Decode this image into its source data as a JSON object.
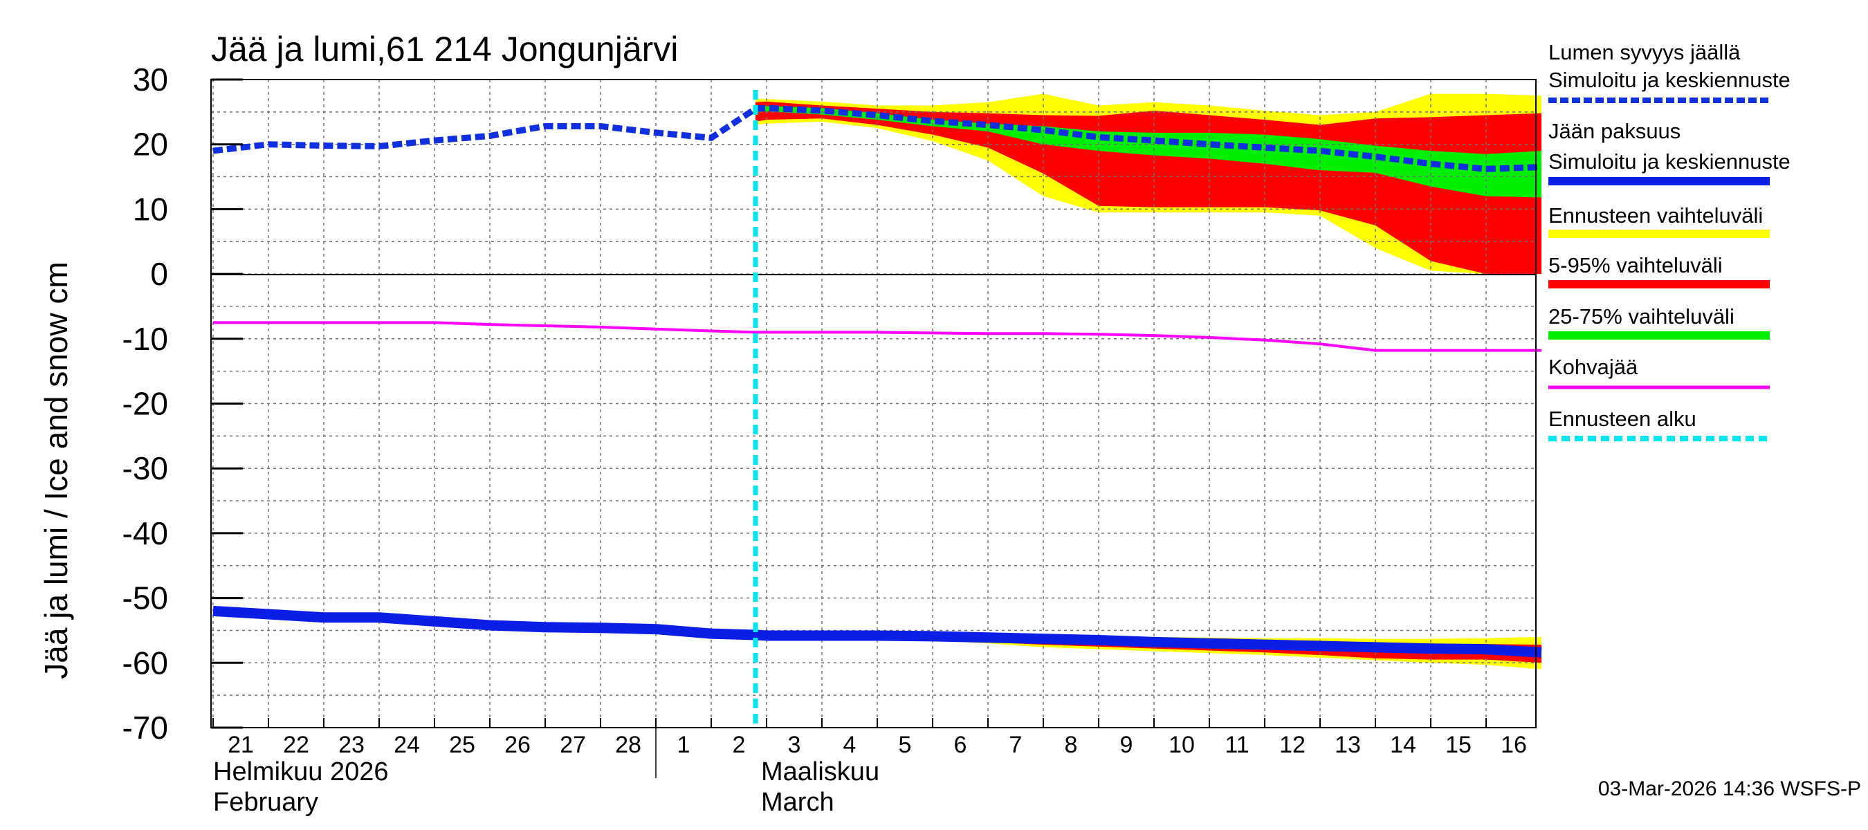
{
  "chart_data": {
    "type": "area",
    "title": "Jää ja lumi,61 214 Jongunjärvi",
    "ylabel": "Jää ja lumi / Ice and snow    cm",
    "ylim": [
      -70,
      30
    ],
    "yticks": [
      "30",
      "20",
      "10",
      "0",
      "-10",
      "-20",
      "-30",
      "-40",
      "-50",
      "-60",
      "-70"
    ],
    "x_start": "2026-02-21",
    "day_labels": [
      "21",
      "22",
      "23",
      "24",
      "25",
      "26",
      "27",
      "28",
      "1",
      "2",
      "3",
      "4",
      "5",
      "6",
      "7",
      "8",
      "9",
      "10",
      "11",
      "12",
      "13",
      "14",
      "15",
      "16"
    ],
    "month_labels": [
      {
        "fi": "Helmikuu  2026",
        "en": "February",
        "day_index": 0
      },
      {
        "fi": "Maaliskuu",
        "en": "March",
        "day_index": 9
      }
    ],
    "forecast_start_day": 9.8,
    "timestamp": "03-Mar-2026 14:36 WSFS-P",
    "colors": {
      "snow": "#1030e0",
      "ice": "#0a1ee6",
      "range_full": "#ffff00",
      "range_5_95": "#ff0000",
      "range_25_75": "#00ee00",
      "slush": "#ff00ff",
      "forecast_start": "#00e5ee",
      "grid": "#707070"
    },
    "series": [
      {
        "name": "Lumen syvyys jäällä (simuloitu ja keskiennuste)",
        "x": [
          0,
          1,
          2,
          3,
          4,
          5,
          6,
          7,
          8,
          9,
          9.8,
          10,
          11,
          12,
          13,
          14,
          15,
          16,
          17,
          18,
          19,
          20,
          21,
          22,
          23,
          24
        ],
        "values": [
          19,
          20,
          19.8,
          19.7,
          20.6,
          21.3,
          22.8,
          22.8,
          21.8,
          21.0,
          25.5,
          25.6,
          25.2,
          24.5,
          23.6,
          23.0,
          22.2,
          21.1,
          20.6,
          20.0,
          19.5,
          19.0,
          18.1,
          17.0,
          16.2,
          16.5
        ]
      },
      {
        "name": "Jään paksuus (simuloitu ja keskiennuste)",
        "x": [
          0,
          1,
          2,
          3,
          4,
          5,
          6,
          7,
          8,
          9,
          9.8,
          10,
          11,
          12,
          13,
          14,
          15,
          16,
          17,
          18,
          19,
          20,
          21,
          22,
          23,
          24
        ],
        "values": [
          -52,
          -52.5,
          -53,
          -53,
          -53.6,
          -54.2,
          -54.5,
          -54.6,
          -54.8,
          -55.5,
          -55.7,
          -55.8,
          -55.8,
          -55.8,
          -55.9,
          -56.1,
          -56.3,
          -56.5,
          -56.8,
          -57.0,
          -57.2,
          -57.4,
          -57.6,
          -57.8,
          -57.9,
          -58.4
        ]
      },
      {
        "name": "Kohvajää",
        "x": [
          0,
          1,
          2,
          3,
          4,
          5,
          6,
          7,
          8,
          9,
          9.8,
          10,
          11,
          12,
          13,
          14,
          15,
          16,
          17,
          18,
          19,
          20,
          21,
          22,
          23,
          24
        ],
        "values": [
          -7.5,
          -7.5,
          -7.5,
          -7.5,
          -7.5,
          -7.8,
          -8,
          -8.2,
          -8.5,
          -8.8,
          -9,
          -9,
          -9,
          -9,
          -9.1,
          -9.2,
          -9.2,
          -9.3,
          -9.5,
          -9.8,
          -10.2,
          -10.8,
          -11.8,
          -11.8,
          -11.8,
          -11.8
        ]
      }
    ],
    "snow_bands": {
      "x": [
        9.8,
        10,
        11,
        12,
        13,
        14,
        15,
        16,
        17,
        18,
        19,
        20,
        21,
        22,
        23,
        24
      ],
      "full_hi": [
        27,
        27,
        26.6,
        26.0,
        26.0,
        26.5,
        27.8,
        26.0,
        26.5,
        26.0,
        25.2,
        24.5,
        25.0,
        27.8,
        27.8,
        27.5
      ],
      "full_lo": [
        23,
        23.2,
        23.5,
        22.5,
        20.5,
        17.5,
        12,
        9.5,
        9.5,
        9.5,
        9.5,
        9,
        4,
        0.5,
        0,
        0
      ],
      "p95": [
        26.5,
        26.6,
        26,
        25.5,
        25,
        24.8,
        24.5,
        24.4,
        25.2,
        24.5,
        23.8,
        23.0,
        24.0,
        24.2,
        24.5,
        24.8
      ],
      "p5": [
        23.5,
        23.8,
        24,
        23,
        21.5,
        19.5,
        15.5,
        10.5,
        10.3,
        10.3,
        10.3,
        9.8,
        7.5,
        2,
        0,
        0
      ],
      "p75": [
        25.8,
        25.9,
        25.6,
        24.8,
        23.8,
        23.2,
        22.8,
        22.0,
        21.8,
        21.8,
        21.5,
        20.8,
        19.8,
        19,
        18.5,
        19.0
      ],
      "p25": [
        25.0,
        25.1,
        24.6,
        23.8,
        22.8,
        22.0,
        20.0,
        19.0,
        18.3,
        17.8,
        17.0,
        16.0,
        15.6,
        13.5,
        12,
        11.8
      ]
    },
    "ice_bands": {
      "x": [
        13,
        14,
        15,
        16,
        17,
        18,
        19,
        20,
        21,
        22,
        23,
        24
      ],
      "full_hi": [
        -55.8,
        -55.9,
        -56.0,
        -56.0,
        -56.0,
        -56.1,
        -56.2,
        -56.2,
        -56.3,
        -56.3,
        -56.2,
        -56.0
      ],
      "full_lo": [
        -56.5,
        -57.0,
        -57.6,
        -57.9,
        -58.2,
        -58.5,
        -58.8,
        -59.2,
        -59.6,
        -60.0,
        -60.3,
        -61.0
      ],
      "p95": [
        -55.9,
        -56.0,
        -56.1,
        -56.3,
        -56.5,
        -56.7,
        -56.8,
        -56.9,
        -57.0,
        -57.1,
        -57.1,
        -57.2
      ],
      "p5": [
        -56.2,
        -56.8,
        -57.2,
        -57.5,
        -57.8,
        -58.1,
        -58.4,
        -58.8,
        -59.3,
        -59.5,
        -59.5,
        -60.0
      ]
    }
  },
  "legend": [
    {
      "line1": "Lumen syvyys jäällä",
      "line2": "Simuloitu ja keskiennuste",
      "swatch": "dashed-blue"
    },
    {
      "line1": "Jään paksuus",
      "line2": "Simuloitu ja keskiennuste",
      "swatch": "solid-blue"
    },
    {
      "line1": "Ennusteen vaihteluväli",
      "swatch": "yellow"
    },
    {
      "line1": "5-95% vaihteluväli",
      "swatch": "red"
    },
    {
      "line1": "25-75% vaihteluväli",
      "swatch": "green"
    },
    {
      "line1": "Kohvajää",
      "swatch": "magenta"
    },
    {
      "line1": "Ennusteen alku",
      "swatch": "cyan-dashed"
    }
  ]
}
